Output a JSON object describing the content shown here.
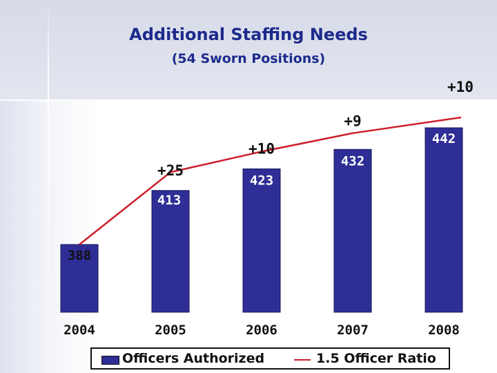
{
  "title": "Additional Staffing Needs",
  "subtitle": "(54 Sworn Positions)",
  "colors": {
    "bar_fill": "#2e2e96",
    "bar_label": "#ffffff",
    "ratio_line": "#cc1f2a",
    "title": "#1d2a8c"
  },
  "chart_data": {
    "type": "bar",
    "categories": [
      "2004",
      "2005",
      "2006",
      "2007",
      "2008"
    ],
    "series": [
      {
        "name": "Officers Authorized",
        "type": "bar",
        "values": [
          388,
          413,
          423,
          432,
          442
        ]
      },
      {
        "name": "1.5 Officer Ratio",
        "type": "line",
        "values": [
          388,
          413,
          423,
          432,
          442
        ]
      }
    ],
    "bar_labels": [
      "388",
      "413",
      "423",
      "432",
      "442"
    ],
    "increments": [
      "",
      "+25",
      "+10",
      "+9",
      "+10"
    ],
    "legend": [
      "Officers Authorized",
      "1.5 Officer Ratio"
    ],
    "legend_position": "bottom",
    "grid": false
  }
}
